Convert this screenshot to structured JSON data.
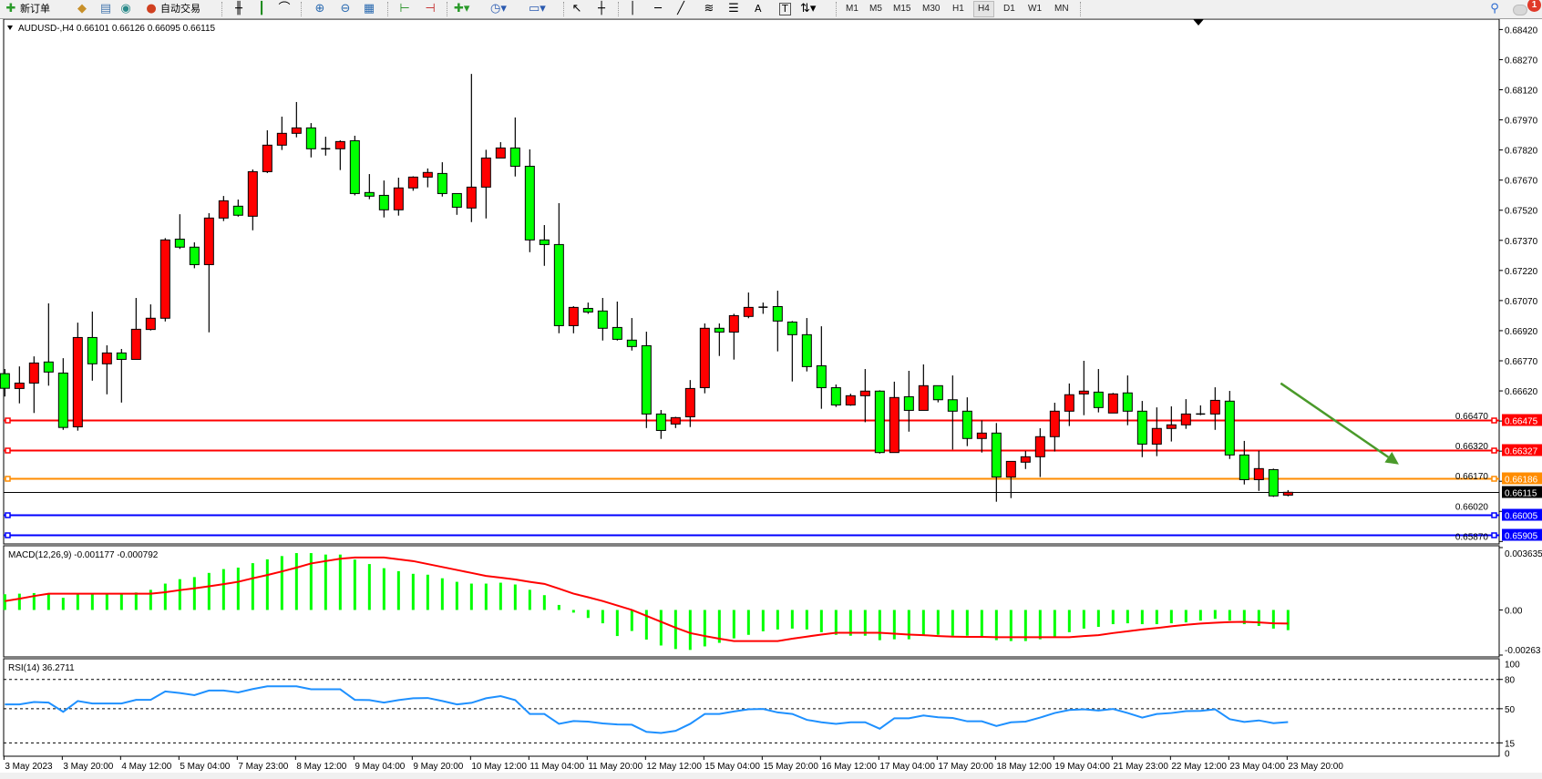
{
  "toolbar": {
    "new_order_label": "新订单",
    "auto_trading_label": "自动交易",
    "timeframes": [
      "M1",
      "M5",
      "M15",
      "M30",
      "H1",
      "H4",
      "D1",
      "W1",
      "MN"
    ],
    "active_timeframe": "H4",
    "notification_count": "1",
    "icons": [
      "new-order-icon",
      "market-watch-icon",
      "terminal-icon",
      "signals-icon",
      "auto-trading-icon",
      "bar-chart-icon",
      "candlestick-icon",
      "line-chart-icon",
      "zoom-in-icon",
      "zoom-out-icon",
      "tile-windows-icon",
      "chart-shift-icon",
      "autoscroll-icon",
      "add-indicator-icon",
      "periods-icon",
      "templates-icon",
      "cursor-icon",
      "crosshair-icon",
      "vertical-line-icon",
      "horizontal-line-icon",
      "trendline-icon",
      "fibonacci-fan-icon",
      "fibonacci-retracement-icon",
      "text-icon",
      "text-label-icon",
      "arrows-icon",
      "search-icon",
      "notification-icon"
    ],
    "text_tool_label": "A",
    "label_tool_label": "T"
  },
  "chart_data": {
    "type": "candlestick",
    "symbol_header": "AUDUSD-,H4  0.66101 0.66126 0.66095 0.66115",
    "up_color": "#ff0000",
    "down_color": "#00ff00",
    "price_axis": {
      "ylim": [
        0.6587,
        0.6842
      ],
      "ticks": [
        "0.68420",
        "0.68270",
        "0.68120",
        "0.67970",
        "0.67820",
        "0.67670",
        "0.67520",
        "0.67370",
        "0.67220",
        "0.67070",
        "0.66920",
        "0.66770",
        "0.66620",
        "0.66470",
        "0.66320",
        "0.66170",
        "0.66020",
        "0.65870"
      ]
    },
    "x_axis_labels": [
      "3 May 2023",
      "3 May 20:00",
      "4 May 12:00",
      "5 May 04:00",
      "7 May 23:00",
      "8 May 12:00",
      "9 May 04:00",
      "9 May 20:00",
      "10 May 12:00",
      "11 May 04:00",
      "11 May 20:00",
      "12 May 12:00",
      "15 May 04:00",
      "15 May 20:00",
      "16 May 12:00",
      "17 May 04:00",
      "17 May 20:00",
      "18 May 12:00",
      "19 May 04:00",
      "21 May 23:00",
      "22 May 12:00",
      "23 May 04:00",
      "23 May 20:00"
    ],
    "bars_per_label": 4,
    "ohlc": [
      [
        0.66706,
        0.66729,
        0.66592,
        0.66633
      ],
      [
        0.66632,
        0.66742,
        0.66558,
        0.66659
      ],
      [
        0.66659,
        0.66792,
        0.6651,
        0.66759
      ],
      [
        0.66764,
        0.67056,
        0.66646,
        0.66714
      ],
      [
        0.66709,
        0.66783,
        0.66426,
        0.66438
      ],
      [
        0.66441,
        0.6696,
        0.66422,
        0.66886
      ],
      [
        0.66886,
        0.67015,
        0.66671,
        0.66755
      ],
      [
        0.66755,
        0.66847,
        0.66603,
        0.66809
      ],
      [
        0.66809,
        0.66829,
        0.66562,
        0.66777
      ],
      [
        0.66777,
        0.67083,
        0.66777,
        0.66927
      ],
      [
        0.66926,
        0.67051,
        0.66921,
        0.66982
      ],
      [
        0.66982,
        0.67381,
        0.66966,
        0.67372
      ],
      [
        0.67376,
        0.675,
        0.67327,
        0.67336
      ],
      [
        0.67336,
        0.6736,
        0.67231,
        0.67249
      ],
      [
        0.67249,
        0.67505,
        0.66912,
        0.67481
      ],
      [
        0.67481,
        0.67591,
        0.67466,
        0.67567
      ],
      [
        0.6754,
        0.67573,
        0.67488,
        0.67495
      ],
      [
        0.6749,
        0.67723,
        0.6742,
        0.67712
      ],
      [
        0.67712,
        0.67918,
        0.67705,
        0.67844
      ],
      [
        0.67844,
        0.67986,
        0.6782,
        0.67903
      ],
      [
        0.67903,
        0.68059,
        0.67883,
        0.6793
      ],
      [
        0.6793,
        0.67954,
        0.67783,
        0.67826
      ],
      [
        0.67826,
        0.67886,
        0.67792,
        0.67826
      ],
      [
        0.67826,
        0.67868,
        0.6772,
        0.67862
      ],
      [
        0.67866,
        0.67891,
        0.67594,
        0.67603
      ],
      [
        0.67608,
        0.677,
        0.67575,
        0.6759
      ],
      [
        0.67594,
        0.67668,
        0.67484,
        0.67522
      ],
      [
        0.67522,
        0.67682,
        0.67493,
        0.67631
      ],
      [
        0.67631,
        0.67689,
        0.67617,
        0.67685
      ],
      [
        0.67685,
        0.67728,
        0.67634,
        0.67708
      ],
      [
        0.67703,
        0.67759,
        0.67588,
        0.67603
      ],
      [
        0.67603,
        0.67603,
        0.67497,
        0.67535
      ],
      [
        0.67531,
        0.68199,
        0.67461,
        0.67635
      ],
      [
        0.67635,
        0.67821,
        0.67479,
        0.6778
      ],
      [
        0.6778,
        0.67859,
        0.6778,
        0.6783
      ],
      [
        0.6783,
        0.67982,
        0.67688,
        0.67739
      ],
      [
        0.67739,
        0.67823,
        0.67311,
        0.67372
      ],
      [
        0.67372,
        0.67446,
        0.67243,
        0.67349
      ],
      [
        0.67349,
        0.67555,
        0.66907,
        0.66945
      ],
      [
        0.66945,
        0.67042,
        0.66907,
        0.67036
      ],
      [
        0.67031,
        0.6706,
        0.67004,
        0.67013
      ],
      [
        0.67018,
        0.67083,
        0.66871,
        0.66932
      ],
      [
        0.66936,
        0.67065,
        0.66871,
        0.66877
      ],
      [
        0.66873,
        0.66983,
        0.66821,
        0.66841
      ],
      [
        0.66845,
        0.66915,
        0.66435,
        0.66505
      ],
      [
        0.66505,
        0.66525,
        0.66381,
        0.66423
      ],
      [
        0.66455,
        0.66491,
        0.66435,
        0.66487
      ],
      [
        0.66491,
        0.66674,
        0.6644,
        0.66632
      ],
      [
        0.66636,
        0.66956,
        0.66608,
        0.66932
      ],
      [
        0.66932,
        0.66956,
        0.66794,
        0.66913
      ],
      [
        0.66913,
        0.67004,
        0.66776,
        0.66995
      ],
      [
        0.66991,
        0.6711,
        0.66982,
        0.67036
      ],
      [
        0.67037,
        0.6706,
        0.67004,
        0.67037
      ],
      [
        0.6704,
        0.67119,
        0.66817,
        0.66968
      ],
      [
        0.66963,
        0.66968,
        0.66667,
        0.669
      ],
      [
        0.669,
        0.66983,
        0.66717,
        0.66741
      ],
      [
        0.66745,
        0.66942,
        0.66531,
        0.66636
      ],
      [
        0.66636,
        0.66652,
        0.6654,
        0.6655
      ],
      [
        0.6655,
        0.66606,
        0.66546,
        0.66596
      ],
      [
        0.66596,
        0.66729,
        0.66464,
        0.66619
      ],
      [
        0.66619,
        0.66623,
        0.66308,
        0.66313
      ],
      [
        0.66313,
        0.66666,
        0.66313,
        0.66587
      ],
      [
        0.66591,
        0.6672,
        0.66417,
        0.66523
      ],
      [
        0.66523,
        0.66752,
        0.66523,
        0.66646
      ],
      [
        0.66646,
        0.66646,
        0.66563,
        0.66576
      ],
      [
        0.66576,
        0.66697,
        0.66328,
        0.66519
      ],
      [
        0.66519,
        0.66588,
        0.66345,
        0.66383
      ],
      [
        0.66383,
        0.66473,
        0.66313,
        0.6641
      ],
      [
        0.6641,
        0.6646,
        0.66068,
        0.66191
      ],
      [
        0.66191,
        0.66269,
        0.66086,
        0.66269
      ],
      [
        0.66265,
        0.66321,
        0.66231,
        0.66292
      ],
      [
        0.66292,
        0.66434,
        0.66191,
        0.66392
      ],
      [
        0.66392,
        0.66561,
        0.66318,
        0.66519
      ],
      [
        0.66519,
        0.66657,
        0.66445,
        0.66601
      ],
      [
        0.66605,
        0.6677,
        0.66499,
        0.66619
      ],
      [
        0.66614,
        0.66729,
        0.66513,
        0.66537
      ],
      [
        0.6651,
        0.6661,
        0.6651,
        0.66605
      ],
      [
        0.6661,
        0.66697,
        0.66449,
        0.66519
      ],
      [
        0.66519,
        0.6657,
        0.6629,
        0.66355
      ],
      [
        0.66355,
        0.66538,
        0.66295,
        0.66433
      ],
      [
        0.66433,
        0.66543,
        0.66368,
        0.66451
      ],
      [
        0.66451,
        0.66579,
        0.66431,
        0.66505
      ],
      [
        0.66505,
        0.66548,
        0.66499,
        0.66505
      ],
      [
        0.66505,
        0.66638,
        0.66426,
        0.66573
      ],
      [
        0.66569,
        0.6662,
        0.66281,
        0.66301
      ],
      [
        0.66301,
        0.66371,
        0.66154,
        0.66178
      ],
      [
        0.66178,
        0.66322,
        0.66122,
        0.66233
      ],
      [
        0.66228,
        0.66233,
        0.66092,
        0.66097
      ],
      [
        0.66101,
        0.66126,
        0.66095,
        0.66115
      ]
    ],
    "horizontal_lines": [
      {
        "price": 0.66475,
        "label": "0.66475",
        "color": "#ff0000"
      },
      {
        "price": 0.66327,
        "label": "0.66327",
        "color": "#ff0000"
      },
      {
        "price": 0.66186,
        "label": "0.66186",
        "color": "#ff8c00"
      },
      {
        "price": 0.66005,
        "label": "0.66005",
        "color": "#0000ff"
      },
      {
        "price": 0.65905,
        "label": "0.65905",
        "color": "#0000ff"
      }
    ],
    "bid_line": {
      "price": 0.66115,
      "label": "0.66115",
      "color": "#000000"
    },
    "arrow": {
      "color": "#4a9a2a",
      "from_price": 0.66658,
      "to_price": 0.66254,
      "from_bar": 87.5,
      "to_bar": 95.6
    },
    "macd": {
      "label": "MACD(12,26,9) -0.001177 -0.000792",
      "ylim": [
        -0.00263,
        0.003635
      ],
      "ticks": [
        "0.003635",
        "0.00",
        "-0.00263"
      ],
      "hist_color": "#00ff00",
      "signal_color": "#ff0000",
      "histogram": [
        0.000915,
        0.000949,
        0.000984,
        0.000949,
        0.000708,
        0.000915,
        0.000915,
        0.000915,
        0.000915,
        0.001018,
        0.001174,
        0.001536,
        0.001795,
        0.001916,
        0.002158,
        0.002382,
        0.002468,
        0.002727,
        0.002951,
        0.003141,
        0.003314,
        0.003314,
        0.003228,
        0.003228,
        0.002934,
        0.002675,
        0.002434,
        0.002261,
        0.002106,
        0.002054,
        0.001847,
        0.00164,
        0.001536,
        0.001536,
        0.001588,
        0.001484,
        0.001174,
        0.000863,
        0.000293,
        -0.000155,
        -0.000466,
        -0.000777,
        -0.001519,
        -0.001225,
        -0.001726,
        -0.002071,
        -0.002278,
        -0.00233,
        -0.002123,
        -0.001916,
        -0.001657,
        -0.00145,
        -0.001243,
        -0.001139,
        -0.001087,
        -0.001139,
        -0.001295,
        -0.00145,
        -0.001502,
        -0.001502,
        -0.001761,
        -0.001709,
        -0.001709,
        -0.001502,
        -0.00145,
        -0.001502,
        -0.001502,
        -0.001553,
        -0.001761,
        -0.001812,
        -0.001812,
        -0.001709,
        -0.001553,
        -0.001295,
        -0.001087,
        -0.000984,
        -0.000828,
        -0.000777,
        -0.000828,
        -0.000828,
        -0.000777,
        -0.000725,
        -0.000621,
        -0.000518,
        -0.000621,
        -0.000828,
        -0.000932,
        -0.001087,
        -0.001177
      ],
      "signal": [
        0.000518,
        0.000656,
        0.000811,
        0.000949,
        0.000949,
        0.000949,
        0.000949,
        0.000949,
        0.000949,
        0.000949,
        0.000949,
        0.001036,
        0.001156,
        0.00126,
        0.001381,
        0.001502,
        0.00164,
        0.001847,
        0.002037,
        0.002244,
        0.002468,
        0.00271,
        0.002848,
        0.002986,
        0.003055,
        0.003055,
        0.003055,
        0.002951,
        0.002848,
        0.002675,
        0.002503,
        0.00233,
        0.002158,
        0.001985,
        0.001881,
        0.001778,
        0.00164,
        0.001519,
        0.001243,
        0.000949,
        0.000742,
        0.000518,
        0.000259,
        0,
        -0.000345,
        -0.00069,
        -0.001036,
        -0.001346,
        -0.001519,
        -0.001674,
        -0.001812,
        -0.001812,
        -0.001812,
        -0.001812,
        -0.001674,
        -0.001553,
        -0.001433,
        -0.001329,
        -0.001329,
        -0.001329,
        -0.001329,
        -0.001381,
        -0.001433,
        -0.001467,
        -0.001519,
        -0.001553,
        -0.001571,
        -0.001571,
        -0.001588,
        -0.001588,
        -0.001588,
        -0.001588,
        -0.001588,
        -0.001588,
        -0.001519,
        -0.001467,
        -0.001346,
        -0.001243,
        -0.001139,
        -0.001053,
        -0.000949,
        -0.000863,
        -0.000794,
        -0.000742,
        -0.000708,
        -0.00069,
        -0.000725,
        -0.000777,
        -0.000792
      ]
    },
    "rsi": {
      "label": "RSI(14) 36.2711",
      "ylim": [
        0,
        100
      ],
      "ticks": [
        "100",
        "80",
        "50",
        "15",
        "0"
      ],
      "levels": [
        80,
        50,
        15
      ],
      "line_color": "#1e90ff",
      "values": [
        54.4,
        54.4,
        56.9,
        56.3,
        46.8,
        57.9,
        55.4,
        55.4,
        55.4,
        59.1,
        59.1,
        67.7,
        66.1,
        63.9,
        68.6,
        68.6,
        66.7,
        70.2,
        73.0,
        73.0,
        73.0,
        69.9,
        69.9,
        69.9,
        59.1,
        58.8,
        56.3,
        58.8,
        60.7,
        61.0,
        57.9,
        54.4,
        56.0,
        60.7,
        62.9,
        58.8,
        44.6,
        44.6,
        34.5,
        37.4,
        36.8,
        34.9,
        33.9,
        33.6,
        26.3,
        25.1,
        27.3,
        34.5,
        44.6,
        44.6,
        47.2,
        49.4,
        49.7,
        46.2,
        44.6,
        38.6,
        36.1,
        34.5,
        36.1,
        36.1,
        29.5,
        40.2,
        40.2,
        43.1,
        41.2,
        40.5,
        37.1,
        37.1,
        32.3,
        36.1,
        36.8,
        40.9,
        45.6,
        48.7,
        49.4,
        48.1,
        49.7,
        45.6,
        40.9,
        44.6,
        45.6,
        47.5,
        47.8,
        49.4,
        39.3,
        36.4,
        38.0,
        35.2,
        36.27
      ]
    }
  }
}
